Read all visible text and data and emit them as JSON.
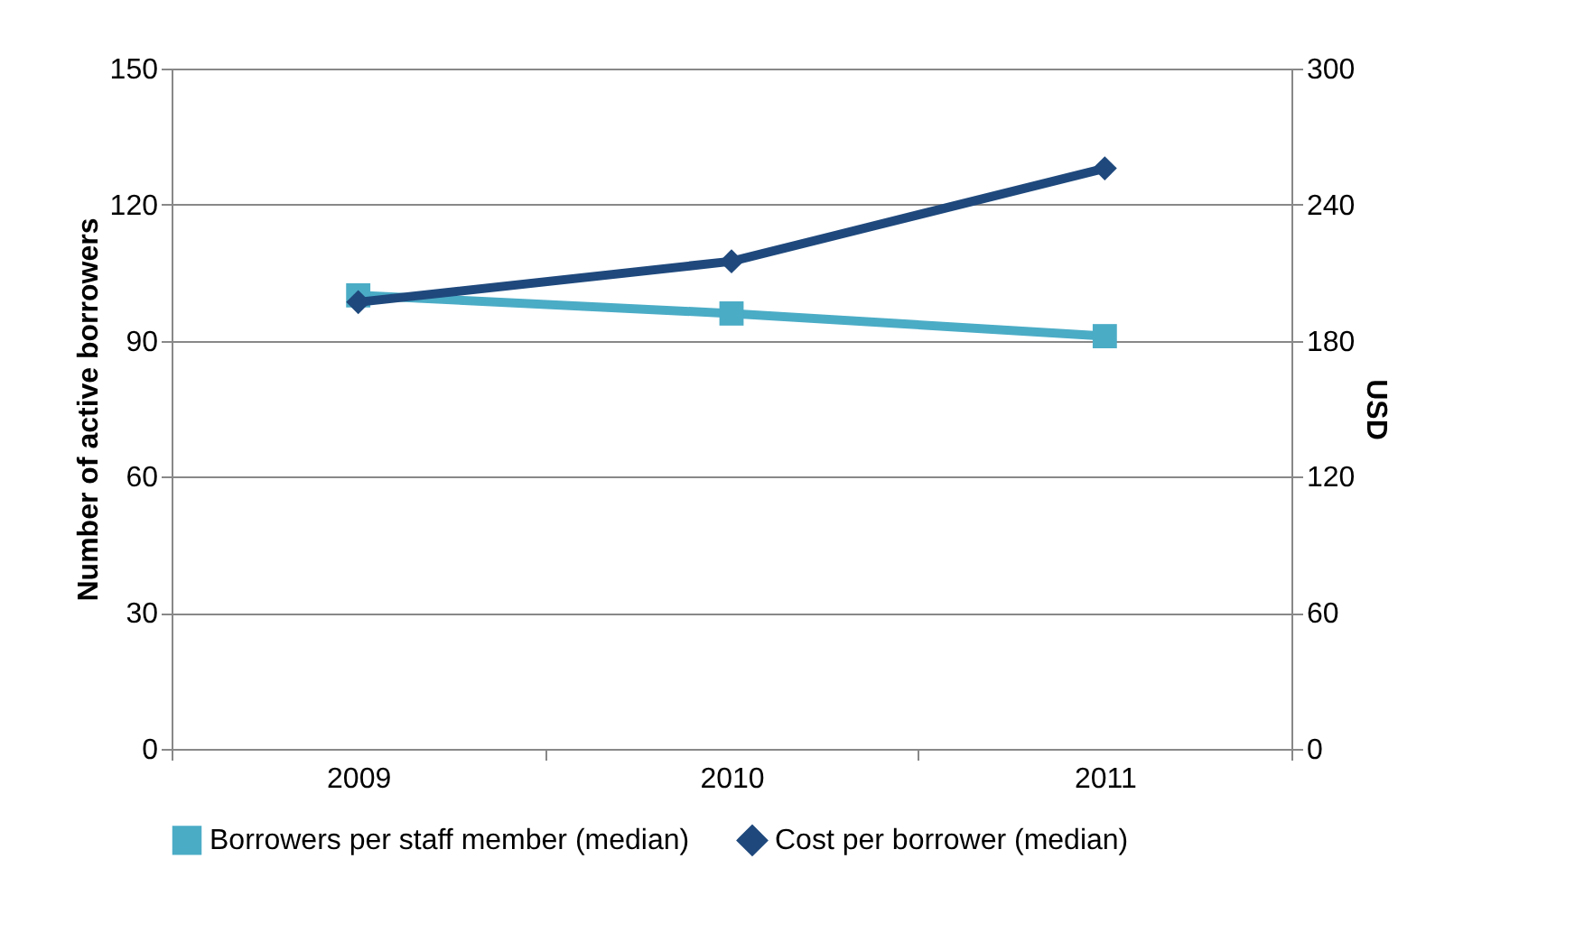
{
  "chart_data": {
    "type": "line",
    "categories": [
      "2009",
      "2010",
      "2011"
    ],
    "ylabel": "Number of active borrowers",
    "y2label": "USD",
    "ylim": [
      0,
      150
    ],
    "yticks": [
      0,
      30,
      60,
      90,
      120,
      150
    ],
    "y2lim": [
      0,
      300
    ],
    "y2ticks": [
      0,
      60,
      120,
      180,
      240,
      300
    ],
    "grid": "y",
    "legend": "bottom",
    "series": [
      {
        "name": "Borrowers per staff member (median)",
        "color": "#4bacc6",
        "marker": "square",
        "values": [
          100,
          96,
          91
        ]
      },
      {
        "name": "Cost per borrower (median)",
        "color": "#1f497d",
        "marker": "diamond",
        "axis": "y2",
        "values": [
          197,
          215,
          256
        ]
      }
    ]
  }
}
